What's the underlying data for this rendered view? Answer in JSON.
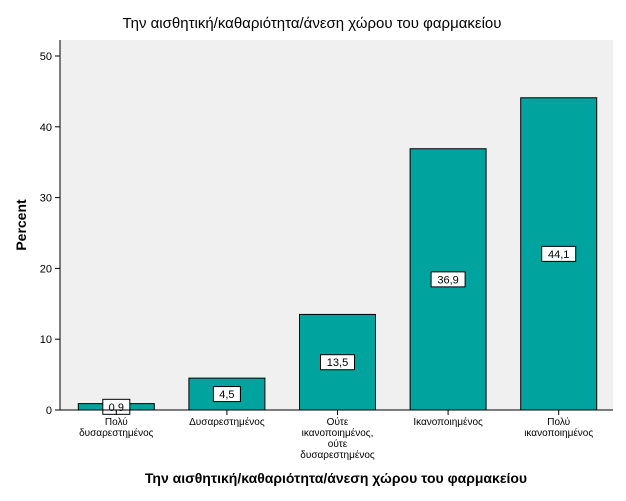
{
  "chart_data": {
    "type": "bar",
    "title": "Την αισθητική/καθαριότητα/άνεση χώρου του φαρμακείου",
    "xlabel": "Την αισθητική/καθαριότητα/άνεση χώρου του φαρμακείου",
    "ylabel": "Percent",
    "categories": [
      [
        "Πολύ",
        "δυσαρεστημένος"
      ],
      [
        "Δυσαρεστημένος"
      ],
      [
        "Ούτε",
        "ικανοποιημένος,",
        "ούτε",
        "δυσαρεστημένος"
      ],
      [
        "Ικανοποιημένος"
      ],
      [
        "Πολύ",
        "ικανοποιημένος"
      ]
    ],
    "values": [
      0.9,
      4.5,
      13.5,
      36.9,
      44.1
    ],
    "data_labels": [
      "0,9",
      "4,5",
      "13,5",
      "36,9",
      "44,1"
    ],
    "ylim": [
      0,
      50
    ],
    "yticks": [
      0,
      10,
      20,
      30,
      40,
      50
    ],
    "grid": false,
    "colors": {
      "bar": "#00a39e",
      "plot_background": "#f0f0f0",
      "page_background": "#ffffff"
    }
  }
}
